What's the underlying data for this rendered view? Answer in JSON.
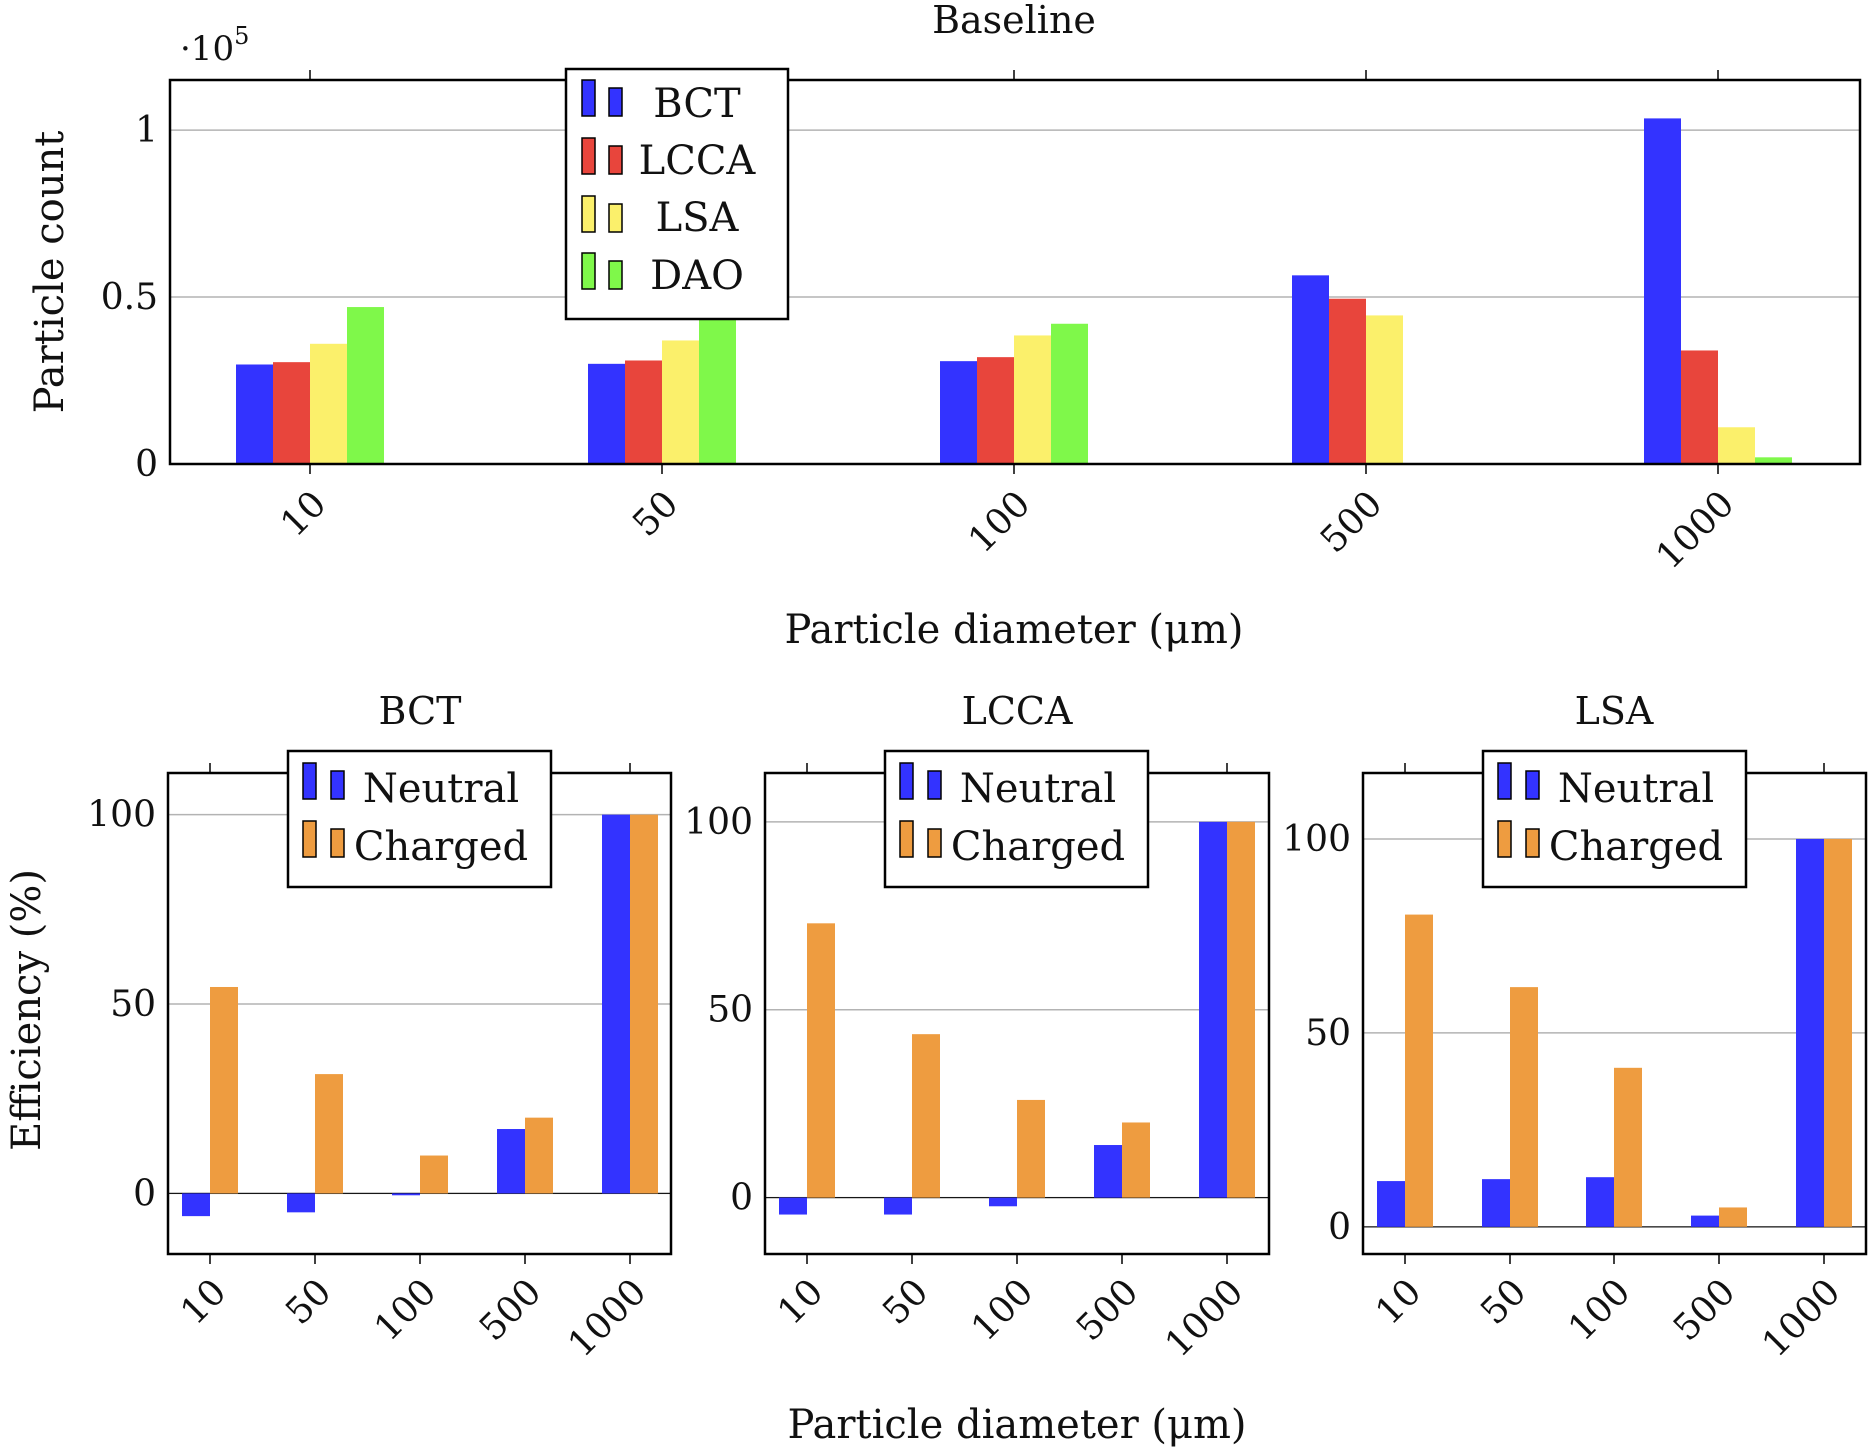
{
  "chart_data": [
    {
      "id": "baseline",
      "type": "bar",
      "title": "Baseline",
      "xlabel": "Particle diameter (μm)",
      "ylabel": "Particle count",
      "ylim": [
        0,
        115000
      ],
      "yticks": [
        0,
        50000,
        100000
      ],
      "ytick_labels": [
        "0",
        "0.5",
        "1"
      ],
      "scale_label": "·10",
      "scale_exponent": "5",
      "grid": true,
      "legend_position": "top-center",
      "categories": [
        "10",
        "50",
        "100",
        "500",
        "1000"
      ],
      "series": [
        {
          "name": "BCT",
          "color": "#3333ff",
          "values": [
            29800,
            30000,
            30800,
            56500,
            103500
          ]
        },
        {
          "name": "LCCA",
          "color": "#e8453c",
          "values": [
            30500,
            31000,
            32000,
            49500,
            34000
          ]
        },
        {
          "name": "LSA",
          "color": "#fbf06b",
          "values": [
            36000,
            37000,
            38500,
            44500,
            11000
          ]
        },
        {
          "name": "DAO",
          "color": "#7ff84a",
          "values": [
            47000,
            45000,
            42000,
            0,
            2000
          ]
        }
      ]
    },
    {
      "id": "bct",
      "type": "bar",
      "title": "BCT",
      "xlabel": "",
      "ylabel": "Efficiency (%)",
      "ylim": [
        -16,
        111
      ],
      "yticks": [
        0,
        50,
        100
      ],
      "ytick_labels": [
        "0",
        "50",
        "100"
      ],
      "grid": true,
      "legend_position": "top-center",
      "categories": [
        "10",
        "50",
        "100",
        "500",
        "1000"
      ],
      "series": [
        {
          "name": "Neutral",
          "color": "#3333ff",
          "values": [
            -6,
            -5,
            -0.5,
            17,
            100
          ]
        },
        {
          "name": "Charged",
          "color": "#ee9c40",
          "values": [
            54.5,
            31.5,
            10,
            20,
            100
          ]
        }
      ]
    },
    {
      "id": "lcca",
      "type": "bar",
      "title": "LCCA",
      "xlabel": "",
      "ylabel": "",
      "ylim": [
        -15,
        113
      ],
      "yticks": [
        0,
        50,
        100
      ],
      "ytick_labels": [
        "0",
        "50",
        "100"
      ],
      "grid": true,
      "legend_position": "top-center",
      "categories": [
        "10",
        "50",
        "100",
        "500",
        "1000"
      ],
      "series": [
        {
          "name": "Neutral",
          "color": "#3333ff",
          "values": [
            -4.5,
            -4.5,
            -2.3,
            14,
            100
          ]
        },
        {
          "name": "Charged",
          "color": "#ee9c40",
          "values": [
            73,
            43.5,
            26,
            20,
            100
          ]
        }
      ]
    },
    {
      "id": "lsa",
      "type": "bar",
      "title": "LSA",
      "xlabel": "",
      "ylabel": "",
      "ylim": [
        -7,
        117
      ],
      "yticks": [
        0,
        50,
        100
      ],
      "ytick_labels": [
        "0",
        "50",
        "100"
      ],
      "grid": true,
      "legend_position": "top-center",
      "categories": [
        "10",
        "50",
        "100",
        "500",
        "1000"
      ],
      "series": [
        {
          "name": "Neutral",
          "color": "#3333ff",
          "values": [
            11.8,
            12.3,
            12.8,
            2.9,
            100
          ]
        },
        {
          "name": "Charged",
          "color": "#ee9c40",
          "values": [
            80.5,
            61.8,
            41,
            5,
            100
          ]
        }
      ]
    }
  ],
  "shared_xlabel": "Particle diameter (μm)"
}
